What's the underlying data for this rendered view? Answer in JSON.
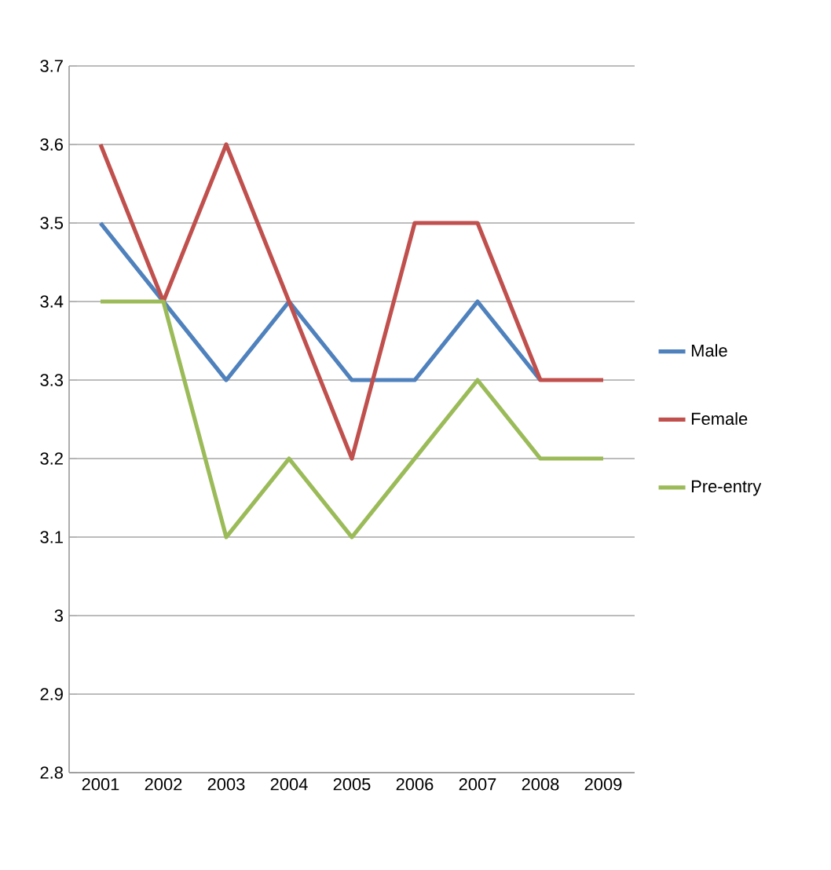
{
  "chart_data": {
    "type": "line",
    "categories": [
      "2001",
      "2002",
      "2003",
      "2004",
      "2005",
      "2006",
      "2007",
      "2008",
      "2009"
    ],
    "series": [
      {
        "name": "Male",
        "color": "#4f81bd",
        "values": [
          3.5,
          3.4,
          3.3,
          3.4,
          3.3,
          3.3,
          3.4,
          3.3,
          null
        ]
      },
      {
        "name": "Female",
        "color": "#c0504d",
        "values": [
          3.6,
          3.4,
          3.6,
          3.4,
          3.2,
          3.5,
          3.5,
          3.3,
          3.3
        ]
      },
      {
        "name": "Pre-entry",
        "color": "#9bbb59",
        "values": [
          3.4,
          3.4,
          3.1,
          3.2,
          3.1,
          3.2,
          3.3,
          3.2,
          3.2
        ]
      }
    ],
    "ylim": [
      2.8,
      3.7
    ],
    "yticks": [
      2.8,
      2.9,
      3,
      3.1,
      3.2,
      3.3,
      3.4,
      3.5,
      3.6,
      3.7
    ],
    "grid": "y",
    "legend": "right",
    "marker": "none",
    "line_style": "solid"
  }
}
